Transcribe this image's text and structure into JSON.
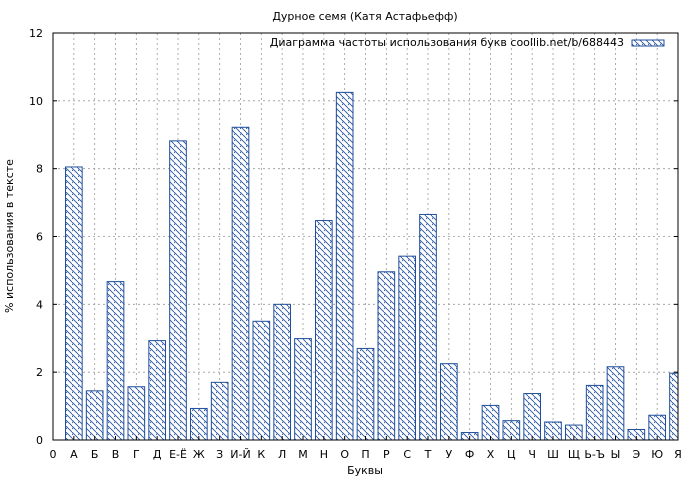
{
  "chart_data": {
    "type": "bar",
    "title": "Дурное семя (Катя Астафьефф)",
    "xlabel": "Буквы",
    "ylabel": "% использования в тексте",
    "legend": {
      "label": "Диаграмма частоты использования букв coollib.net/b/688443",
      "placement": "top-right"
    },
    "origin_tick_label": "0",
    "categories": [
      "А",
      "Б",
      "В",
      "Г",
      "Д",
      "Е-Ё",
      "Ж",
      "З",
      "И-Й",
      "К",
      "Л",
      "М",
      "Н",
      "О",
      "П",
      "Р",
      "С",
      "Т",
      "У",
      "Ф",
      "Х",
      "Ц",
      "Ч",
      "Ш",
      "Щ",
      "Ь-Ъ",
      "Ы",
      "Э",
      "Ю",
      "Я"
    ],
    "values": [
      8.05,
      1.45,
      4.67,
      1.57,
      2.93,
      8.82,
      0.93,
      1.7,
      9.22,
      3.5,
      4.0,
      2.99,
      6.47,
      10.25,
      2.7,
      4.96,
      5.42,
      6.65,
      2.25,
      0.22,
      1.02,
      0.57,
      1.37,
      0.53,
      0.44,
      1.61,
      2.16,
      0.31,
      0.73,
      1.97
    ],
    "ylim": [
      0,
      12
    ],
    "yticks": [
      0,
      2,
      4,
      6,
      8,
      10,
      12
    ],
    "grid": true,
    "colors": {
      "bar_edge": "#1f4e9c",
      "hatch": "#1f4e9c",
      "grid": "#999999",
      "background": "#ffffff"
    }
  }
}
